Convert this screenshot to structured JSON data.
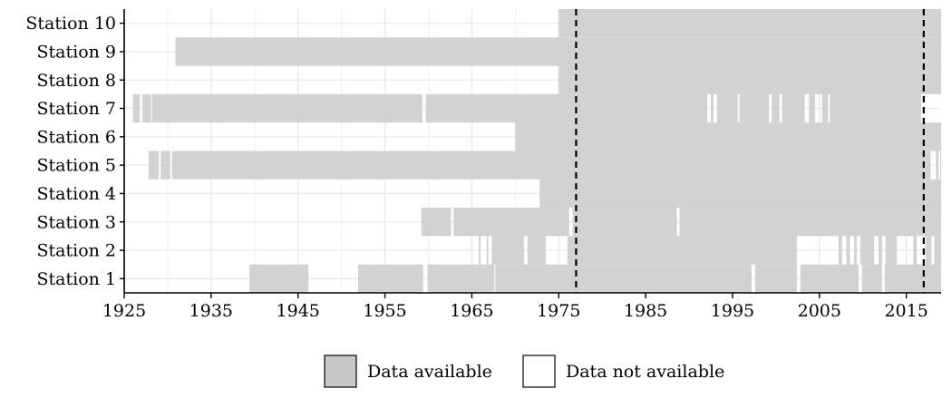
{
  "chart_data": {
    "type": "bar",
    "title": "",
    "xlabel": "",
    "ylabel": "",
    "xlim": [
      1925,
      2019
    ],
    "x_ticks": [
      "1925",
      "1935",
      "1945",
      "1955",
      "1965",
      "1975",
      "1985",
      "1995",
      "2005",
      "2015"
    ],
    "categories": [
      "Station 1",
      "Station 2",
      "Station 3",
      "Station 4",
      "Station 5",
      "Station 6",
      "Station 7",
      "Station 8",
      "Station 9",
      "Station 10"
    ],
    "series": [
      {
        "station": "Station 1",
        "available": [
          [
            1939.4,
            1946.2
          ],
          [
            1951.9,
            1959.4
          ],
          [
            1959.9,
            1967.6
          ],
          [
            1967.7,
            1997.2
          ],
          [
            1997.6,
            2002.4
          ],
          [
            2002.8,
            2009.5
          ],
          [
            2009.9,
            2012.2
          ],
          [
            2012.5,
            2019.0
          ]
        ]
      },
      {
        "station": "Station 2",
        "available": [
          [
            1965.8,
            1966.0
          ],
          [
            1966.7,
            1966.9
          ],
          [
            1967.3,
            1971.0
          ],
          [
            1971.4,
            1973.5
          ],
          [
            1976.0,
            2002.4
          ],
          [
            2007.2,
            2007.6
          ],
          [
            2008.1,
            2008.5
          ],
          [
            2009.0,
            2009.3
          ],
          [
            2009.7,
            2011.3
          ],
          [
            2011.8,
            2012.2
          ],
          [
            2012.6,
            2013.9
          ],
          [
            2015.8,
            2016.2
          ],
          [
            2017.2,
            2017.9
          ],
          [
            2018.2,
            2019.0
          ]
        ]
      },
      {
        "station": "Station 3",
        "available": [
          [
            1959.2,
            1962.6
          ],
          [
            1962.9,
            1976.2
          ],
          [
            1976.6,
            1988.6
          ],
          [
            1988.9,
            2019.0
          ]
        ]
      },
      {
        "station": "Station 4",
        "available": [
          [
            1972.8,
            2019.0
          ]
        ]
      },
      {
        "station": "Station 5",
        "available": [
          [
            1927.8,
            1929.0
          ],
          [
            1929.2,
            1930.3
          ],
          [
            1930.5,
            2017.8
          ],
          [
            2018.4,
            2018.7
          ],
          [
            2018.9,
            2019.0
          ]
        ]
      },
      {
        "station": "Station 6",
        "available": [
          [
            1970.0,
            2019.0
          ]
        ]
      },
      {
        "station": "Station 7",
        "available": [
          [
            1926.0,
            1926.8
          ],
          [
            1927.1,
            1928.1
          ],
          [
            1928.2,
            1959.3
          ],
          [
            1959.7,
            1992.1
          ],
          [
            1992.5,
            1992.8
          ],
          [
            1993.2,
            1995.6
          ],
          [
            1995.8,
            1999.2
          ],
          [
            1999.5,
            2000.4
          ],
          [
            2000.7,
            2003.3
          ],
          [
            2003.8,
            2004.5
          ],
          [
            2005.3,
            2006.0
          ],
          [
            2006.2,
            2016.7
          ]
        ]
      },
      {
        "station": "Station 8",
        "available": [
          [
            1975.0,
            2019.0
          ]
        ]
      },
      {
        "station": "Station 9",
        "available": [
          [
            1930.9,
            2019.0
          ]
        ]
      },
      {
        "station": "Station 10",
        "available": [
          [
            1975.0,
            2019.0
          ]
        ]
      }
    ],
    "vlines": [
      1977,
      2017
    ],
    "grid": true,
    "legend_position": "bottom",
    "legend": [
      {
        "label": "Data available",
        "color": "#c8c8c8"
      },
      {
        "label": "Data not available",
        "color": "#ffffff"
      }
    ],
    "colors": {
      "available": "#d2d2d2",
      "available_edge": "#c4c4c4",
      "grid": "#ebebeb",
      "axis": "#000000"
    }
  }
}
